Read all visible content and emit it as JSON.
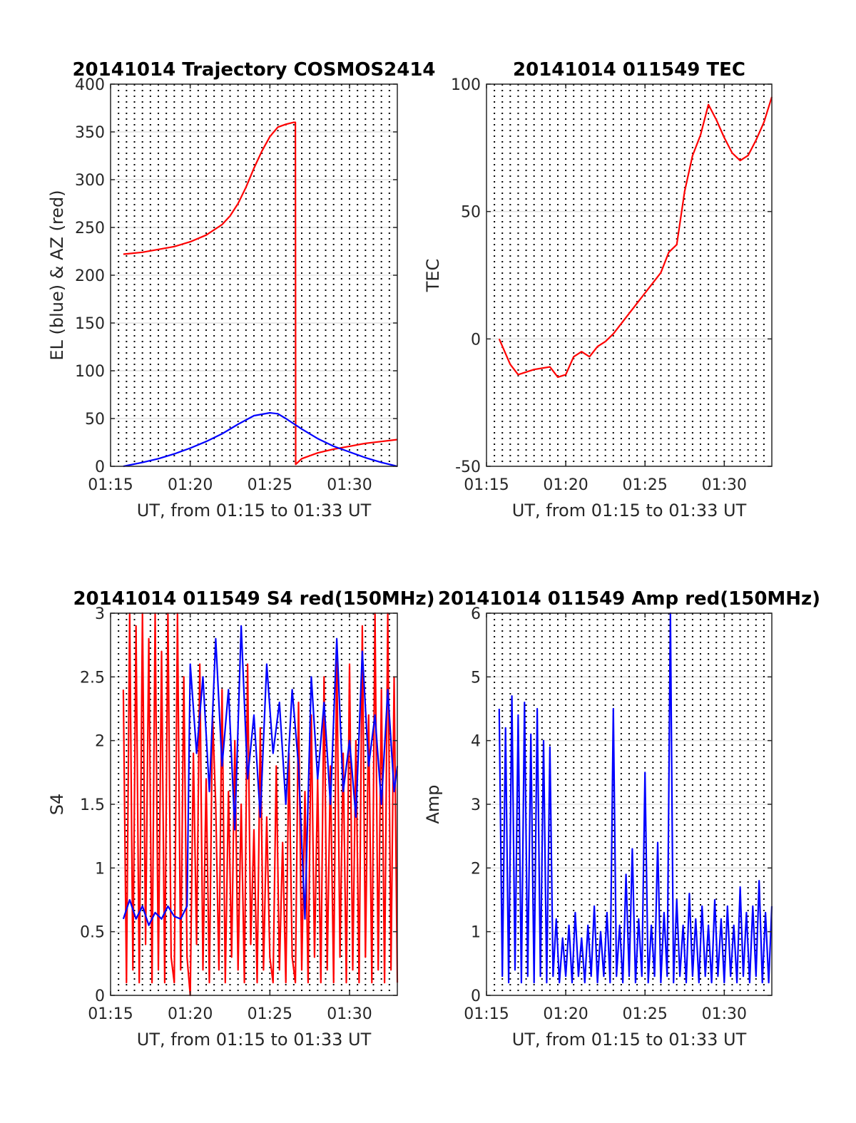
{
  "chart_data": [
    {
      "type": "line",
      "title": "20141014 Trajectory COSMOS2414",
      "xlabel": "UT, from 01:15 to 01:33 UT",
      "ylabel": "EL (blue) & AZ (red)",
      "x_unit": "minutes after 01:15 UT",
      "xlim": [
        0,
        18
      ],
      "ylim": [
        0,
        400
      ],
      "xticks": [
        {
          "value": 0,
          "label": "01:15"
        },
        {
          "value": 5,
          "label": "01:20"
        },
        {
          "value": 10,
          "label": "01:25"
        },
        {
          "value": 15,
          "label": "01:30"
        }
      ],
      "yticks": [
        {
          "value": 0,
          "label": "0"
        },
        {
          "value": 50,
          "label": "50"
        },
        {
          "value": 100,
          "label": "100"
        },
        {
          "value": 150,
          "label": "150"
        },
        {
          "value": 200,
          "label": "200"
        },
        {
          "value": 250,
          "label": "250"
        },
        {
          "value": 300,
          "label": "300"
        },
        {
          "value": 350,
          "label": "350"
        },
        {
          "value": 400,
          "label": "400"
        }
      ],
      "grid": true,
      "dotted_vlines_every_min": 0.5,
      "series": [
        {
          "color": "#ff0000",
          "x": [
            0.8,
            2,
            3,
            4,
            5,
            6,
            7,
            7.5,
            8,
            8.5,
            9,
            9.5,
            10,
            10.5,
            11,
            11.5,
            11.6,
            11.62,
            12,
            13,
            14,
            15,
            16,
            17,
            18
          ],
          "y": [
            222,
            224,
            227,
            230,
            235,
            242,
            253,
            262,
            275,
            292,
            312,
            330,
            345,
            355,
            358,
            360,
            360,
            2,
            8,
            14,
            18,
            21,
            24,
            26,
            28
          ]
        },
        {
          "color": "#0000ff",
          "x": [
            0.8,
            2,
            3,
            4,
            5,
            6,
            7,
            8,
            9,
            10,
            10.5,
            11,
            12,
            13,
            14,
            15,
            16,
            17,
            18
          ],
          "y": [
            0,
            4,
            8,
            13,
            19,
            26,
            34,
            44,
            53,
            56,
            55,
            50,
            39,
            29,
            21,
            15,
            9,
            4,
            0
          ]
        }
      ]
    },
    {
      "type": "line",
      "title": "20141014 011549 TEC",
      "xlabel": "UT, from 01:15 to 01:33 UT",
      "ylabel": "TEC",
      "x_unit": "minutes after 01:15 UT",
      "xlim": [
        0,
        18
      ],
      "ylim": [
        -50,
        100
      ],
      "xticks": [
        {
          "value": 0,
          "label": "01:15"
        },
        {
          "value": 5,
          "label": "01:20"
        },
        {
          "value": 10,
          "label": "01:25"
        },
        {
          "value": 15,
          "label": "01:30"
        }
      ],
      "yticks": [
        {
          "value": -50,
          "label": "-50"
        },
        {
          "value": 0,
          "label": "0"
        },
        {
          "value": 50,
          "label": "50"
        },
        {
          "value": 100,
          "label": "100"
        }
      ],
      "grid": true,
      "dotted_vlines_every_min": 0.5,
      "series": [
        {
          "color": "#ff0000",
          "x": [
            0.8,
            1.5,
            2,
            3,
            4,
            4.5,
            5,
            5.5,
            6,
            6.5,
            7,
            7.5,
            8,
            9,
            10,
            11,
            11.5,
            12,
            12.5,
            13,
            13.5,
            14,
            14.5,
            15,
            15.5,
            16,
            16.5,
            17,
            17.5,
            18
          ],
          "y": [
            0,
            -10,
            -14,
            -12,
            -11,
            -15,
            -14,
            -7,
            -5,
            -7,
            -3,
            -1,
            2,
            10,
            18,
            26,
            34,
            37,
            58,
            72,
            80,
            92,
            86,
            79,
            73,
            70,
            72,
            78,
            85,
            95
          ]
        }
      ]
    },
    {
      "type": "line",
      "title": "20141014 011549 S4 red(150MHz)",
      "xlabel": "UT, from 01:15 to 01:33 UT",
      "ylabel": "S4",
      "x_unit": "minutes after 01:15 UT",
      "xlim": [
        0,
        18
      ],
      "ylim": [
        0,
        3
      ],
      "xticks": [
        {
          "value": 0,
          "label": "01:15"
        },
        {
          "value": 5,
          "label": "01:20"
        },
        {
          "value": 10,
          "label": "01:25"
        },
        {
          "value": 15,
          "label": "01:30"
        }
      ],
      "yticks": [
        {
          "value": 0,
          "label": "0"
        },
        {
          "value": 0.5,
          "label": "0.5"
        },
        {
          "value": 1,
          "label": "1"
        },
        {
          "value": 1.5,
          "label": "1.5"
        },
        {
          "value": 2,
          "label": "2"
        },
        {
          "value": 2.5,
          "label": "2.5"
        },
        {
          "value": 3,
          "label": "3"
        }
      ],
      "grid": true,
      "dotted_vlines_every_min": 0.5,
      "series": [
        {
          "color": "#ff0000",
          "x": [
            0.8,
            1.0,
            1.2,
            1.4,
            1.6,
            1.8,
            2.0,
            2.2,
            2.4,
            2.6,
            2.8,
            3.0,
            3.2,
            3.4,
            3.6,
            3.8,
            4.0,
            4.2,
            4.4,
            4.6,
            4.8,
            5.0,
            5.2,
            5.4,
            5.6,
            5.8,
            6.0,
            6.2,
            6.4,
            6.6,
            6.8,
            7.0,
            7.2,
            7.4,
            7.6,
            7.8,
            8.0,
            8.2,
            8.4,
            8.6,
            8.8,
            9.0,
            9.2,
            9.4,
            9.6,
            9.8,
            10.0,
            10.2,
            10.4,
            10.6,
            10.8,
            11.0,
            11.2,
            11.4,
            11.6,
            11.8,
            12.0,
            12.2,
            12.4,
            12.6,
            12.8,
            13.0,
            13.2,
            13.4,
            13.6,
            13.8,
            14.0,
            14.2,
            14.4,
            14.6,
            14.8,
            15.0,
            15.2,
            15.4,
            15.6,
            15.8,
            16.0,
            16.2,
            16.4,
            16.6,
            16.8,
            17.0,
            17.2,
            17.4,
            17.6,
            17.8,
            18.0
          ],
          "y": [
            2.4,
            0.1,
            3,
            0.2,
            2.9,
            0.1,
            3,
            0.4,
            2.8,
            0.1,
            3,
            0.2,
            2.7,
            0.1,
            3,
            0.3,
            0.1,
            3,
            0.2,
            2.5,
            0.3,
            0,
            1.9,
            0.4,
            2.6,
            0.2,
            1.7,
            0.1,
            2.2,
            1.5,
            0.2,
            2.4,
            0.1,
            1.6,
            0.3,
            2.0,
            0.2,
            1.5,
            0.1,
            2.6,
            0.4,
            1.3,
            0.1,
            2.1,
            0.2,
            1.4,
            0.3,
            0.1,
            1.8,
            0.2,
            1.2,
            0.1,
            1.9,
            0.3,
            0.1,
            2.3,
            0.2,
            1.6,
            0.1,
            2.2,
            0.3,
            1.7,
            0.1,
            2.5,
            0.2,
            1.8,
            0.1,
            2.7,
            0.3,
            1.9,
            0.1,
            2.6,
            0.2,
            2.0,
            0.1,
            2.9,
            0.3,
            2.2,
            0.1,
            3,
            0.2,
            2.4,
            0.1,
            3,
            0.2,
            2.5,
            0.1
          ]
        },
        {
          "color": "#0000ff",
          "x": [
            0.8,
            1.2,
            1.6,
            2.0,
            2.4,
            2.8,
            3.2,
            3.6,
            4.0,
            4.4,
            4.8,
            5.0,
            5.4,
            5.8,
            6.2,
            6.6,
            7.0,
            7.4,
            7.8,
            8.2,
            8.6,
            9.0,
            9.4,
            9.8,
            10.2,
            10.6,
            11.0,
            11.4,
            11.8,
            12.2,
            12.6,
            13.0,
            13.4,
            13.8,
            14.2,
            14.6,
            15.0,
            15.4,
            15.8,
            16.2,
            16.6,
            17.0,
            17.4,
            17.8,
            18.0
          ],
          "y": [
            0.6,
            0.75,
            0.6,
            0.7,
            0.55,
            0.65,
            0.6,
            0.7,
            0.62,
            0.6,
            0.7,
            2.6,
            1.9,
            2.5,
            1.6,
            2.8,
            1.8,
            2.4,
            1.3,
            2.9,
            1.7,
            2.2,
            1.4,
            2.6,
            1.9,
            2.3,
            1.5,
            2.4,
            1.8,
            0.6,
            2.5,
            1.7,
            2.3,
            1.5,
            2.8,
            1.6,
            2.0,
            1.4,
            2.7,
            1.8,
            2.2,
            1.5,
            2.4,
            1.6,
            1.8
          ]
        }
      ]
    },
    {
      "type": "line",
      "title": "20141014 011549 Amp red(150MHz)",
      "xlabel": "UT, from 01:15 to 01:33 UT",
      "ylabel": "Amp",
      "x_unit": "minutes after 01:15 UT",
      "xlim": [
        0,
        18
      ],
      "ylim": [
        0,
        6
      ],
      "xticks": [
        {
          "value": 0,
          "label": "01:15"
        },
        {
          "value": 5,
          "label": "01:20"
        },
        {
          "value": 10,
          "label": "01:25"
        },
        {
          "value": 15,
          "label": "01:30"
        }
      ],
      "yticks": [
        {
          "value": 0,
          "label": "0"
        },
        {
          "value": 1,
          "label": "1"
        },
        {
          "value": 2,
          "label": "2"
        },
        {
          "value": 3,
          "label": "3"
        },
        {
          "value": 4,
          "label": "4"
        },
        {
          "value": 5,
          "label": "5"
        },
        {
          "value": 6,
          "label": "6"
        }
      ],
      "grid": true,
      "dotted_vlines_every_min": 0.5,
      "series": [
        {
          "color": "#0000ff",
          "x": [
            0.8,
            1.0,
            1.2,
            1.4,
            1.6,
            1.8,
            2.0,
            2.2,
            2.4,
            2.6,
            2.8,
            3.0,
            3.2,
            3.4,
            3.6,
            3.8,
            4.0,
            4.2,
            4.4,
            4.6,
            4.8,
            5.0,
            5.2,
            5.4,
            5.6,
            5.8,
            6.0,
            6.2,
            6.4,
            6.6,
            6.8,
            7.0,
            7.2,
            7.4,
            7.6,
            7.8,
            8.0,
            8.2,
            8.4,
            8.6,
            8.8,
            9.0,
            9.2,
            9.4,
            9.6,
            9.8,
            10.0,
            10.2,
            10.4,
            10.6,
            10.8,
            11.0,
            11.2,
            11.4,
            11.6,
            11.8,
            12.0,
            12.2,
            12.4,
            12.6,
            12.8,
            13.0,
            13.2,
            13.4,
            13.6,
            13.8,
            14.0,
            14.2,
            14.4,
            14.6,
            14.8,
            15.0,
            15.2,
            15.4,
            15.6,
            15.8,
            16.0,
            16.2,
            16.4,
            16.6,
            16.8,
            17.0,
            17.2,
            17.4,
            17.6,
            17.8,
            18.0
          ],
          "y": [
            4.5,
            0.3,
            4.2,
            0.2,
            4.7,
            0.4,
            4.4,
            0.2,
            4.6,
            0.3,
            4.1,
            0.2,
            4.5,
            0.3,
            4.0,
            0.2,
            3.9,
            0.3,
            1.2,
            0.2,
            0.9,
            0.3,
            1.1,
            0.2,
            1.3,
            0.3,
            0.9,
            0.2,
            1.1,
            0.3,
            1.4,
            0.2,
            1.0,
            0.3,
            1.3,
            0.2,
            4.5,
            0.3,
            1.1,
            0.2,
            1.9,
            0.3,
            2.3,
            0.2,
            1.2,
            0.3,
            3.5,
            0.2,
            1.1,
            0.3,
            2.4,
            0.2,
            1.3,
            0.3,
            6.0,
            0.2,
            1.5,
            0.3,
            1.1,
            0.2,
            1.6,
            0.3,
            1.2,
            0.2,
            1.4,
            0.3,
            1.1,
            0.2,
            1.5,
            0.3,
            1.2,
            0.2,
            1.4,
            0.3,
            1.1,
            0.2,
            1.7,
            0.3,
            1.3,
            0.2,
            1.4,
            0.3,
            1.8,
            0.2,
            1.3,
            0.2,
            1.4
          ]
        }
      ]
    }
  ]
}
